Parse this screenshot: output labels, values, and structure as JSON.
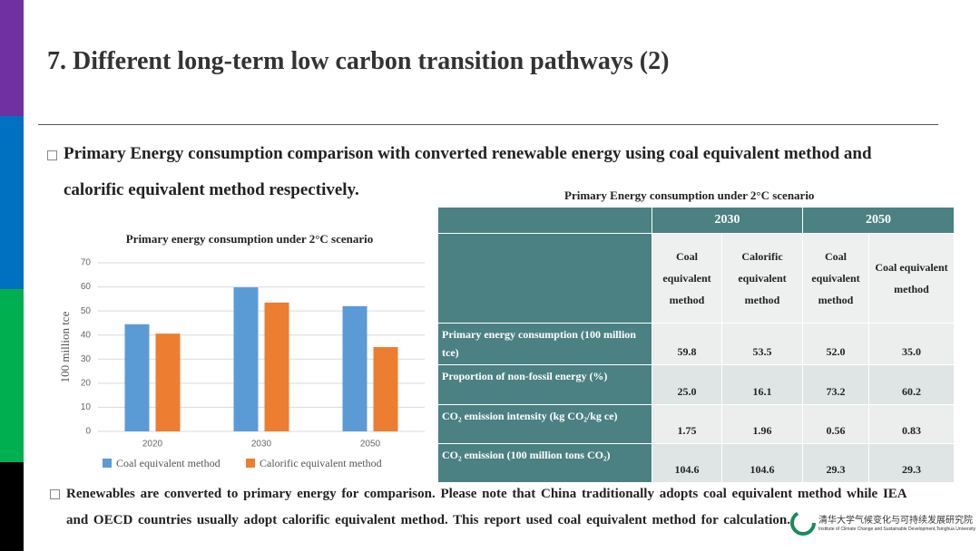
{
  "header": {
    "title": "7. Different long-term low carbon transition pathways (2)"
  },
  "bullets": [
    "Primary Energy consumption comparison with converted renewable energy using coal equivalent method and calorific equivalent method respectively.",
    "Renewables are converted to primary  energy for comparison. Please note that China traditionally adopts coal equivalent method while IEA and OECD countries usually adopt calorific equivalent method. This report used coal equivalent method for calculation."
  ],
  "chart_data": {
    "type": "bar",
    "title": "Primary energy consumption under 2°C scenario",
    "y_label": "100 million tce",
    "categories": [
      "2020",
      "2030",
      "2050"
    ],
    "series": [
      {
        "name": "Coal equivalent method",
        "color": "#5b9bd5",
        "values": [
          44.5,
          59.8,
          52.0
        ]
      },
      {
        "name": "Calorific equivalent method",
        "color": "#ed7d31",
        "values": [
          40.6,
          53.5,
          35.0
        ]
      }
    ],
    "ylim": [
      0,
      70
    ],
    "yticks": [
      0,
      10,
      20,
      30,
      40,
      50,
      60,
      70
    ],
    "grid": true,
    "legend": "bottom"
  },
  "table": {
    "title": "Primary Energy consumption under 2°C scenario",
    "years": [
      "2030",
      "2050"
    ],
    "columns": [
      "Coal equivalent method",
      "Calorific equivalent method",
      "Coal equivalent method",
      "Coal equivalent method"
    ],
    "rows": [
      [
        "Primary  energy consumption  (100 million  tce)",
        "59.8",
        "53.5",
        "52.0",
        "35.0"
      ],
      [
        "Proportion  of non-fossil energy (%)",
        "25.0",
        "16.1",
        "73.2",
        "60.2"
      ],
      [
        "CO₂ emission intensity (kg CO₂/kg ce)",
        "1.75",
        "1.96",
        "0.56",
        "0.83"
      ],
      [
        "CO₂ emission (100 million  tons CO₂)",
        "104.6",
        "104.6",
        "29.3",
        "29.3"
      ]
    ]
  },
  "logo": {
    "name": "清华大学气候变化与可持续发展研究院",
    "subtitle": "Institute of Climate Change and Sustainable Development,Tsinghua University"
  }
}
